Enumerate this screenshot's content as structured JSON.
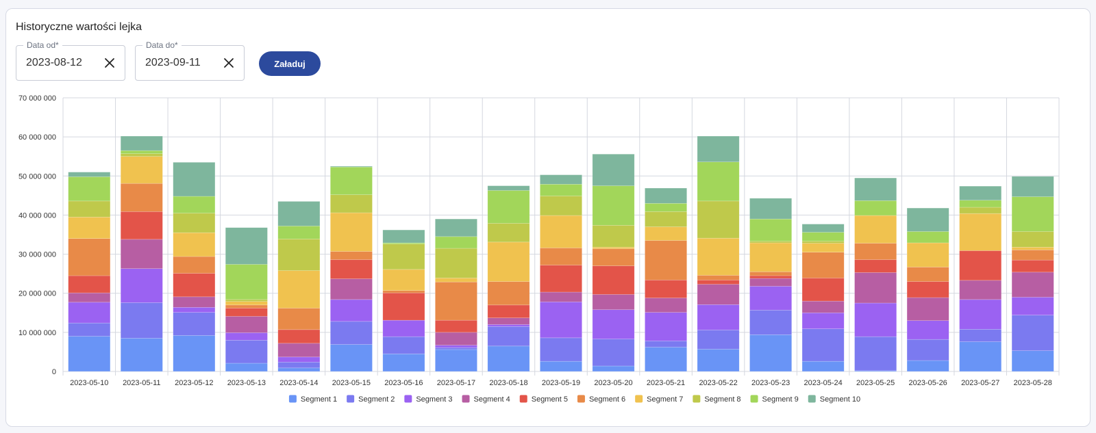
{
  "card": {
    "title": "Historyczne wartości lejka"
  },
  "filters": {
    "date_from": {
      "label": "Data od",
      "required_mark": "*",
      "value": "2023-08-12"
    },
    "date_to": {
      "label": "Data do",
      "required_mark": "*",
      "value": "2023-09-11"
    },
    "load_label": "Załaduj"
  },
  "chart_data": {
    "type": "bar",
    "stacked": true,
    "title": "",
    "xlabel": "",
    "ylabel": "",
    "ylim": [
      0,
      70000000
    ],
    "y_ticks": [
      0,
      10000000,
      20000000,
      30000000,
      40000000,
      50000000,
      60000000,
      70000000
    ],
    "y_tick_labels": [
      "0",
      "10 000 000",
      "20 000 000",
      "30 000 000",
      "40 000 000",
      "50 000 000",
      "60 000 000",
      "70 000 000"
    ],
    "grid": true,
    "legend": "bottom",
    "categories": [
      "2023-05-10",
      "2023-05-11",
      "2023-05-12",
      "2023-05-13",
      "2023-05-14",
      "2023-05-15",
      "2023-05-16",
      "2023-05-17",
      "2023-05-18",
      "2023-05-19",
      "2023-05-20",
      "2023-05-21",
      "2023-05-22",
      "2023-05-23",
      "2023-05-24",
      "2023-05-25",
      "2023-05-26",
      "2023-05-27",
      "2023-05-28"
    ],
    "series": [
      {
        "name": "Segment 1",
        "color": "#6994f6",
        "values": [
          9000000,
          8500000,
          9200000,
          2100000,
          900000,
          6900000,
          4500000,
          5600000,
          6500000,
          2600000,
          1400000,
          6200000,
          5700000,
          9400000,
          2600000,
          200000,
          2800000,
          7600000,
          5300000
        ]
      },
      {
        "name": "Segment 2",
        "color": "#7b7af0",
        "values": [
          3400000,
          9100000,
          5900000,
          5900000,
          1500000,
          5900000,
          4400000,
          500000,
          5000000,
          6000000,
          6900000,
          1600000,
          4900000,
          6300000,
          8300000,
          8700000,
          5400000,
          3200000,
          9100000
        ]
      },
      {
        "name": "Segment 3",
        "color": "#9b62f2",
        "values": [
          5300000,
          8700000,
          1300000,
          1900000,
          1300000,
          5600000,
          4200000,
          600000,
          500000,
          9200000,
          7500000,
          7300000,
          6500000,
          6100000,
          4100000,
          8600000,
          4800000,
          7600000,
          4600000
        ]
      },
      {
        "name": "Segment 4",
        "color": "#b75ea3",
        "values": [
          2400000,
          7500000,
          2700000,
          4200000,
          3500000,
          5300000,
          0,
          3300000,
          1700000,
          2500000,
          3900000,
          3700000,
          5200000,
          2000000,
          3000000,
          7800000,
          5900000,
          4900000,
          6400000
        ]
      },
      {
        "name": "Segment 5",
        "color": "#e35449",
        "values": [
          4400000,
          7100000,
          6000000,
          2100000,
          3500000,
          4900000,
          7000000,
          3100000,
          3300000,
          6900000,
          7300000,
          4600000,
          1100000,
          700000,
          5900000,
          3300000,
          4100000,
          7600000,
          3100000
        ]
      },
      {
        "name": "Segment 6",
        "color": "#e88a48",
        "values": [
          9500000,
          7200000,
          4300000,
          800000,
          5500000,
          2100000,
          600000,
          9800000,
          6000000,
          4400000,
          4400000,
          10100000,
          1200000,
          1000000,
          6600000,
          4200000,
          3700000,
          0,
          2600000
        ]
      },
      {
        "name": "Segment 7",
        "color": "#f0c24f",
        "values": [
          5500000,
          6900000,
          6100000,
          900000,
          9600000,
          9900000,
          5400000,
          1000000,
          10100000,
          8300000,
          400000,
          3500000,
          9500000,
          7400000,
          2300000,
          7100000,
          6200000,
          9500000,
          700000
        ]
      },
      {
        "name": "Segment 8",
        "color": "#bfc94b",
        "values": [
          4100000,
          700000,
          5000000,
          500000,
          8100000,
          4600000,
          6500000,
          7600000,
          4800000,
          5000000,
          5600000,
          3900000,
          9500000,
          400000,
          500000,
          0,
          0,
          1600000,
          4000000
        ]
      },
      {
        "name": "Segment 9",
        "color": "#a2d65a",
        "values": [
          6200000,
          800000,
          4300000,
          9000000,
          3300000,
          7100000,
          300000,
          3000000,
          8400000,
          3000000,
          10100000,
          2100000,
          10000000,
          5700000,
          2300000,
          3800000,
          2900000,
          1800000,
          8900000
        ]
      },
      {
        "name": "Segment 10",
        "color": "#7eb69d",
        "values": [
          1200000,
          3700000,
          8700000,
          9400000,
          6300000,
          200000,
          3300000,
          4500000,
          1200000,
          2400000,
          8100000,
          3900000,
          6600000,
          5300000,
          2100000,
          5800000,
          6000000,
          3600000,
          5200000
        ]
      }
    ]
  }
}
